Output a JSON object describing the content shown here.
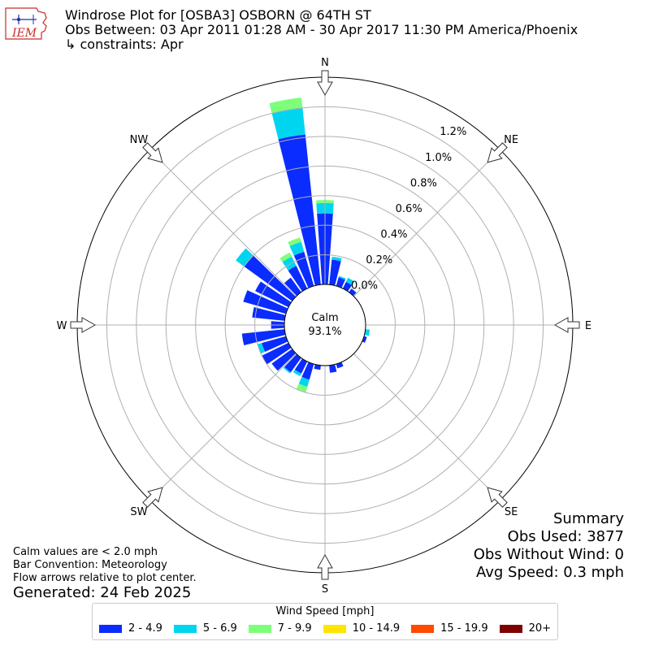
{
  "header": {
    "title_line1": "Windrose Plot for [OSBA3] OSBORN @ 64TH ST",
    "title_line2": "Obs Between: 03 Apr 2011 01:28 AM - 30 Apr 2017 11:30 PM America/Phoenix",
    "title_line3": "↳ constraints: Apr",
    "logo_text": "IEM"
  },
  "notes": {
    "calm_note": "Calm values are < 2.0 mph",
    "bar_convention": "Bar Convention: Meteorology",
    "flow_note": "Flow arrows relative to plot center.",
    "generated": "Generated: 24 Feb 2025"
  },
  "summary": {
    "title": "Summary",
    "obs_used": "Obs Used: 3877",
    "obs_without_wind": "Obs Without Wind: 0",
    "avg_speed": "Avg Speed: 0.3 mph"
  },
  "chart_data": {
    "type": "windrose",
    "calm_label": "Calm",
    "calm_value": "93.1%",
    "direction_labels": [
      "N",
      "NE",
      "E",
      "SE",
      "S",
      "SW",
      "W",
      "NW"
    ],
    "radial_ticks": [
      "0.0%",
      "0.2%",
      "0.4%",
      "0.6%",
      "0.8%",
      "1.0%",
      "1.2%"
    ],
    "radial_range": [
      0,
      1.4
    ],
    "sector_width_deg": 10,
    "legend_title": "Wind Speed [mph]",
    "speed_bins": [
      {
        "label": "2 - 4.9",
        "color": "#0a2cff"
      },
      {
        "label": "5 - 6.9",
        "color": "#00d5f0"
      },
      {
        "label": "7 - 9.9",
        "color": "#7dff7a"
      },
      {
        "label": "10 - 14.9",
        "color": "#ffe500"
      },
      {
        "label": "15 - 19.9",
        "color": "#ff4a00"
      },
      {
        "label": "20+",
        "color": "#7f0000"
      }
    ],
    "sectors": [
      {
        "dir": 0,
        "values": [
          0.48,
          0.07,
          0.02
        ]
      },
      {
        "dir": 10,
        "values": [
          0.17,
          0.02,
          0.0
        ]
      },
      {
        "dir": 20,
        "values": [
          0.06,
          0.01,
          0.0
        ]
      },
      {
        "dir": 30,
        "values": [
          0.05,
          0.03,
          0.0
        ]
      },
      {
        "dir": 40,
        "values": [
          0.03,
          0.0,
          0.0
        ]
      },
      {
        "dir": 50,
        "values": [
          0.0,
          0.0,
          0.0
        ]
      },
      {
        "dir": 60,
        "values": [
          0.0,
          0.0,
          0.0
        ]
      },
      {
        "dir": 70,
        "values": [
          0.0,
          0.0,
          0.0
        ]
      },
      {
        "dir": 80,
        "values": [
          0.0,
          0.0,
          0.0
        ]
      },
      {
        "dir": 90,
        "values": [
          0.0,
          0.0,
          0.0
        ]
      },
      {
        "dir": 100,
        "values": [
          0.0,
          0.03,
          0.0
        ]
      },
      {
        "dir": 110,
        "values": [
          0.02,
          0.0,
          0.0
        ]
      },
      {
        "dir": 120,
        "values": [
          0.0,
          0.0,
          0.0
        ]
      },
      {
        "dir": 130,
        "values": [
          0.0,
          0.0,
          0.0
        ]
      },
      {
        "dir": 140,
        "values": [
          0.0,
          0.0,
          0.0
        ]
      },
      {
        "dir": 150,
        "values": [
          0.0,
          0.0,
          0.0
        ]
      },
      {
        "dir": 160,
        "values": [
          0.03,
          0.0,
          0.0
        ]
      },
      {
        "dir": 170,
        "values": [
          0.05,
          0.0,
          0.0
        ]
      },
      {
        "dir": 180,
        "values": [
          0.0,
          0.0,
          0.0
        ]
      },
      {
        "dir": 190,
        "values": [
          0.03,
          0.0,
          0.0
        ]
      },
      {
        "dir": 200,
        "values": [
          0.11,
          0.05,
          0.04
        ]
      },
      {
        "dir": 210,
        "values": [
          0.09,
          0.02,
          0.0
        ]
      },
      {
        "dir": 220,
        "values": [
          0.12,
          0.01,
          0.0
        ]
      },
      {
        "dir": 230,
        "values": [
          0.17,
          0.0,
          0.0
        ]
      },
      {
        "dir": 240,
        "values": [
          0.2,
          0.0,
          0.0
        ]
      },
      {
        "dir": 250,
        "values": [
          0.17,
          0.03,
          0.0
        ]
      },
      {
        "dir": 260,
        "values": [
          0.29,
          0.0,
          0.0
        ]
      },
      {
        "dir": 270,
        "values": [
          0.09,
          0.0,
          0.0
        ]
      },
      {
        "dir": 280,
        "values": [
          0.22,
          0.0,
          0.0
        ]
      },
      {
        "dir": 290,
        "values": [
          0.3,
          0.0,
          0.0
        ]
      },
      {
        "dir": 300,
        "values": [
          0.25,
          0.0,
          0.0
        ]
      },
      {
        "dir": 310,
        "values": [
          0.4,
          0.07,
          0.0
        ]
      },
      {
        "dir": 320,
        "values": [
          0.12,
          0.0,
          0.0
        ]
      },
      {
        "dir": 330,
        "values": [
          0.17,
          0.07,
          0.03
        ]
      },
      {
        "dir": 340,
        "values": [
          0.24,
          0.07,
          0.03
        ]
      },
      {
        "dir": 350,
        "values": [
          1.02,
          0.18,
          0.07
        ]
      }
    ]
  }
}
